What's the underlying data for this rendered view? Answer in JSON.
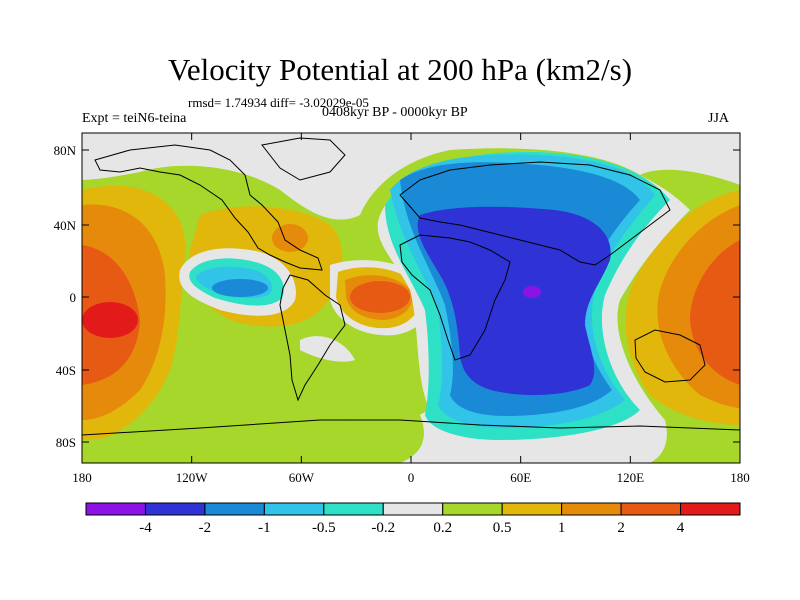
{
  "title": "Velocity Potential at 200 hPa (km2/s)",
  "stats": "rmsd= 1.74934 diff= -3.02029e-05",
  "expt": "Expt = teiN6-teina",
  "period": "0408kyr BP - 0000kyr BP",
  "season": "JJA",
  "lat_ticks": [
    "80N",
    "40N",
    "0",
    "40S",
    "80S"
  ],
  "lon_ticks": [
    "180",
    "120W",
    "60W",
    "0",
    "60E",
    "120E",
    "180"
  ],
  "colorbar": {
    "colors": [
      "#8b13e6",
      "#2f33d6",
      "#1b8ad6",
      "#31c3e8",
      "#2de0c6",
      "#e6e6e6",
      "#a6d72a",
      "#e2b70b",
      "#e68a0c",
      "#e65a14",
      "#e21a1a"
    ],
    "labels": [
      "-4",
      "-2",
      "-1",
      "-0.5",
      "-0.2",
      "0.2",
      "0.5",
      "1",
      "2",
      "4"
    ]
  },
  "colors": {
    "land_outline": "#000000",
    "background": "#ffffff"
  }
}
